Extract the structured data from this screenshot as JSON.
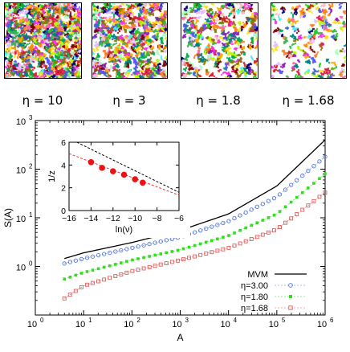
{
  "panels": [
    {
      "label": "η = 10",
      "density": 1.0
    },
    {
      "label": "η = 3",
      "density": 0.85
    },
    {
      "label": "η = 1.8",
      "density": 0.3
    },
    {
      "label": "η = 1.68",
      "density": 0.14
    }
  ],
  "colors": {
    "mvm": "#000000",
    "eta300": "#5a7bdc",
    "eta180": "#33dd22",
    "eta168": "#e06060",
    "inset_points": "#ee1111",
    "inset_line": "#ee3333"
  },
  "chart_data": [
    {
      "type": "line",
      "xlabel": "A",
      "ylabel": "S(A)",
      "xscale": "log",
      "yscale": "log",
      "xlim": [
        1,
        1000000
      ],
      "ylim": [
        0.1,
        1000
      ],
      "xticks": [
        1,
        10,
        100,
        1000,
        10000,
        100000,
        1000000
      ],
      "xticklabels": [
        "10",
        "10",
        "10",
        "10",
        "10",
        "10",
        "10"
      ],
      "xtickexps": [
        "0",
        "1",
        "2",
        "3",
        "4",
        "5",
        "6"
      ],
      "yticks": [
        1,
        10,
        100,
        1000
      ],
      "yticklabels": [
        "10",
        "10",
        "10",
        "10"
      ],
      "ytickexps": [
        "0",
        "1",
        "2",
        "3"
      ],
      "legend_position": "bottom-right",
      "series": [
        {
          "name": "MVM",
          "style": "line",
          "x": [
            4,
            10,
            100,
            1000,
            10000,
            100000,
            1000000
          ],
          "y": [
            1.45,
            1.9,
            3.1,
            5.5,
            12,
            45,
            400
          ]
        },
        {
          "name": "η=3.00",
          "style": "circle",
          "x": [
            4,
            10,
            100,
            1000,
            10000,
            100000,
            1000000
          ],
          "y": [
            1.15,
            1.45,
            2.4,
            4.0,
            8.5,
            27,
            180
          ]
        },
        {
          "name": "η=1.80",
          "style": "star",
          "x": [
            4,
            10,
            100,
            1000,
            10000,
            100000,
            1000000
          ],
          "y": [
            0.55,
            0.75,
            1.35,
            2.2,
            4.3,
            12,
            80
          ]
        },
        {
          "name": "η=1.68",
          "style": "square",
          "x": [
            4,
            10,
            100,
            1000,
            10000,
            100000,
            1000000
          ],
          "y": [
            0.22,
            0.4,
            0.8,
            1.35,
            2.4,
            5.8,
            33
          ]
        }
      ]
    },
    {
      "type": "scatter",
      "xlabel": "ln(ν)",
      "ylabel": "1/z",
      "xlim": [
        -16,
        -6
      ],
      "ylim": [
        0,
        6
      ],
      "xticks": [
        -16,
        -14,
        -12,
        -10,
        -8,
        -6
      ],
      "xticklabels": [
        "−16",
        "−14",
        "−12",
        "−10",
        "−8",
        "−6"
      ],
      "yticks": [
        0,
        2,
        4,
        6
      ],
      "yticklabels": [
        "0",
        "2",
        "4",
        "6"
      ],
      "points": {
        "x": [
          -14,
          -13,
          -12,
          -11,
          -10,
          -9.3
        ],
        "y": [
          4.25,
          3.75,
          3.45,
          3.15,
          2.75,
          2.45
        ]
      },
      "dashed_black": {
        "x": [
          -15.5,
          -6
        ],
        "y": [
          6.1,
          1.6
        ]
      },
      "dashed_red": {
        "x": [
          -16,
          -6
        ],
        "y": [
          5.0,
          1.35
        ]
      }
    }
  ]
}
